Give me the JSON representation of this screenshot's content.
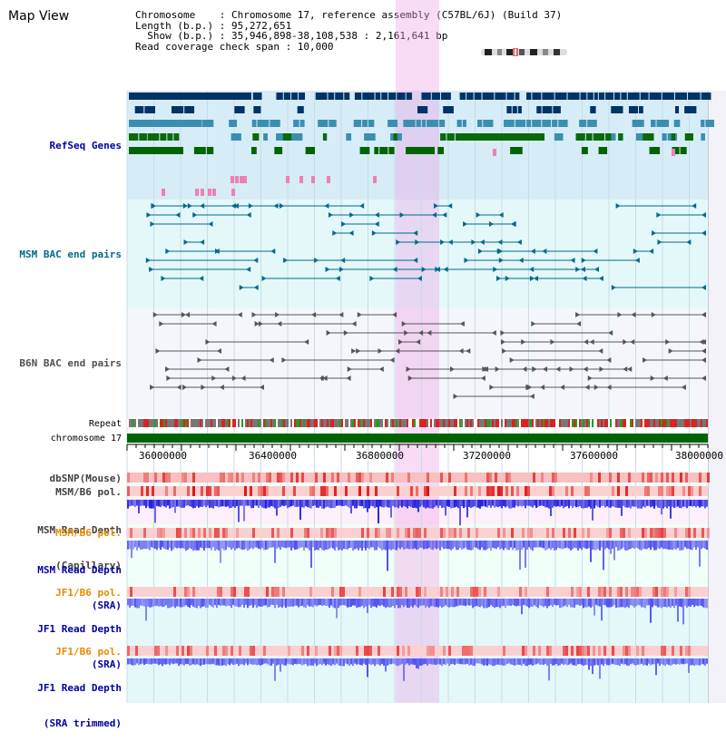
{
  "window": {
    "title": "Map View"
  },
  "info": {
    "lines": [
      "Chromosome    : Chromosome 17, reference assembly (C57BL/6J) (Build 37)",
      "Length (b.p.) : 95,272,651",
      "  Show (b.p.) : 35,946,898-38,108,538 : 2,161,641 bp",
      "Read coverage check span : 10,000"
    ]
  },
  "tracks": {
    "refseq": "RefSeq Genes",
    "msm_bac": "MSM BAC end pairs",
    "b6n_bac": "B6N BAC end pairs",
    "repeat": "Repeat",
    "chromosome": "chromosome 17",
    "dbsnp": "dbSNP(Mouse)",
    "msm_b6_pol_1": "MSM/B6 pol.",
    "msm_depth_cap_1": "MSM Read Depth",
    "msm_depth_cap_2": "(Capillary)",
    "msm_b6_pol_2": "MSM/B6 pol.",
    "msm_depth_sra_1": "MSM Read Depth",
    "msm_depth_sra_2": "(SRA)",
    "jf1_b6_pol_1": "JF1/B6 pol.",
    "jf1_depth_sra_1": "JF1 Read Depth",
    "jf1_depth_sra_2": "(SRA)",
    "jf1_b6_pol_2": "JF1/B6 pol.",
    "jf1_depth_trim_1": "JF1 Read Depth",
    "jf1_depth_trim_2": "(SRA trimmed)"
  },
  "axis": {
    "ticks": [
      "36000000",
      "36400000",
      "36800000",
      "37200000",
      "37600000",
      "38000000"
    ]
  },
  "colors": {
    "highlight": "#f8d8f4",
    "refseq_bg": "#d6ecf7",
    "msm_bg": "#e4f8fa",
    "b6n_bg": "#f4f6fb",
    "chromosome": "#006400",
    "label_blue": "#0000a0",
    "label_orange": "#e88a00",
    "label_dark": "#404040",
    "label_teal": "#006a8a",
    "label_gray": "#505050"
  }
}
